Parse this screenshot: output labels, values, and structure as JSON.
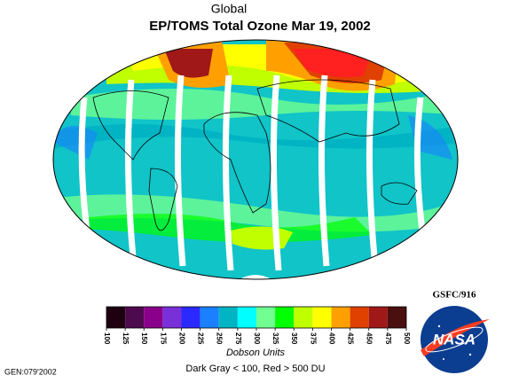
{
  "header": {
    "region": "Global",
    "title": "EP/TOMS Total Ozone Mar 19, 2002"
  },
  "credit": "GSFC/916",
  "logo": "NASA",
  "colorbar": {
    "ticks": [
      100,
      125,
      150,
      175,
      200,
      225,
      250,
      275,
      300,
      325,
      350,
      375,
      400,
      425,
      450,
      475,
      500
    ],
    "colors": [
      "#1e0010",
      "#4e0a4e",
      "#8a008a",
      "#7a30d8",
      "#2a2aff",
      "#1a80ff",
      "#00b4c4",
      "#00ffff",
      "#70ff90",
      "#00ff00",
      "#c0ff00",
      "#ffff00",
      "#ffa000",
      "#e04000",
      "#a01818",
      "#4a1010"
    ],
    "unit": "Dobson Units",
    "note": "Dark Gray < 100, Red > 500 DU"
  },
  "footer": "GEN:079'2002"
}
